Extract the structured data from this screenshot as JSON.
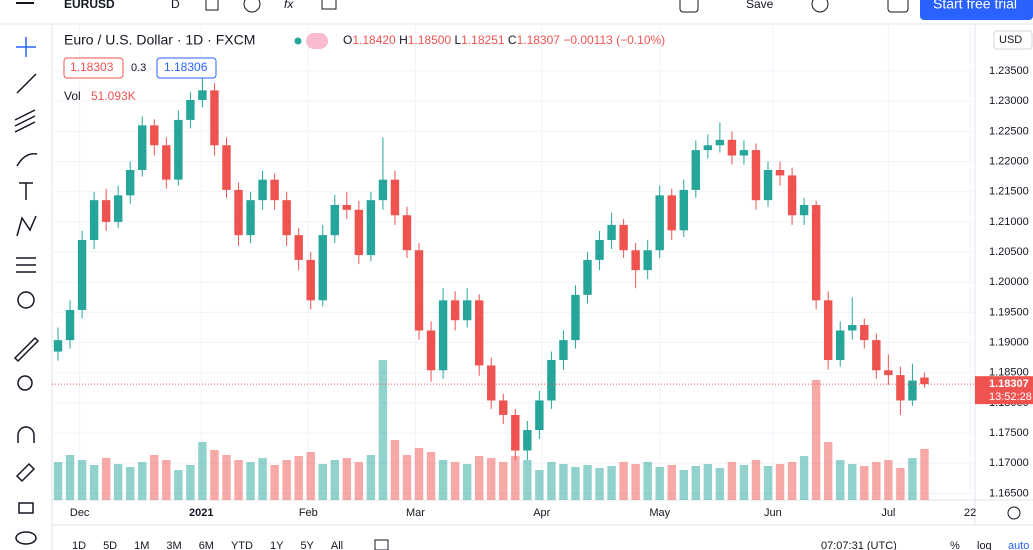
{
  "toolbar": {
    "symbol": "EURUSD",
    "interval": "D",
    "save": "Save",
    "trial": "Start free trial"
  },
  "legend": {
    "title": "Euro / U.S. Dollar · 1D · FXCM",
    "o_label": "O",
    "open": "1.18420",
    "h_label": "H",
    "high": "1.18500",
    "l_label": "L",
    "low": "1.18251",
    "c_label": "C",
    "close": "1.18307",
    "change": "−0.00113 (−0.10%)"
  },
  "trade": {
    "sell": "1.18303",
    "spread": "0.3",
    "buy": "1.18306"
  },
  "volume_legend": {
    "label": "Vol",
    "value": "51.093K"
  },
  "currency": "USD",
  "bottom": {
    "ranges": [
      "1D",
      "5D",
      "1M",
      "3M",
      "6M",
      "YTD",
      "1Y",
      "5Y",
      "All"
    ],
    "clock": "07:07:31 (UTC)",
    "percent": "%",
    "log": "log",
    "auto": "auto"
  },
  "chart_data": {
    "type": "candlestick",
    "up_color": "#26a69a",
    "down_color": "#ef5350",
    "candles": [
      [
        1.1885,
        1.1925,
        1.187,
        1.1904
      ],
      [
        1.1904,
        1.197,
        1.189,
        1.1954
      ],
      [
        1.1954,
        1.2085,
        1.194,
        1.207
      ],
      [
        1.207,
        1.215,
        1.2055,
        1.2136
      ],
      [
        1.2136,
        1.2155,
        1.2085,
        1.21
      ],
      [
        1.21,
        1.216,
        1.209,
        1.2144
      ],
      [
        1.2144,
        1.22,
        1.213,
        1.2186
      ],
      [
        1.2186,
        1.2275,
        1.2175,
        1.226
      ],
      [
        1.226,
        1.227,
        1.221,
        1.2227
      ],
      [
        1.2227,
        1.224,
        1.2155,
        1.217
      ],
      [
        1.217,
        1.2285,
        1.216,
        1.2269
      ],
      [
        1.2269,
        1.2315,
        1.2255,
        1.2302
      ],
      [
        1.2302,
        1.2349,
        1.229,
        1.2318
      ],
      [
        1.2318,
        1.233,
        1.221,
        1.2227
      ],
      [
        1.2227,
        1.224,
        1.214,
        1.2153
      ],
      [
        1.2153,
        1.2165,
        1.206,
        1.2078
      ],
      [
        1.2078,
        1.215,
        1.2065,
        1.2136
      ],
      [
        1.2136,
        1.2185,
        1.212,
        1.217
      ],
      [
        1.217,
        1.218,
        1.212,
        1.2136
      ],
      [
        1.2136,
        1.215,
        1.206,
        1.2078
      ],
      [
        1.2078,
        1.209,
        1.202,
        1.2037
      ],
      [
        1.2037,
        1.205,
        1.1955,
        1.197
      ],
      [
        1.197,
        1.2095,
        1.196,
        1.2078
      ],
      [
        1.2078,
        1.2145,
        1.2065,
        1.2128
      ],
      [
        1.2128,
        1.215,
        1.2105,
        1.212
      ],
      [
        1.212,
        1.2135,
        1.203,
        1.2045
      ],
      [
        1.2045,
        1.215,
        1.2035,
        1.2136
      ],
      [
        1.2136,
        1.224,
        1.212,
        1.217
      ],
      [
        1.217,
        1.2185,
        1.2095,
        1.2111
      ],
      [
        1.2111,
        1.2125,
        1.204,
        1.2053
      ],
      [
        1.2053,
        1.2065,
        1.1905,
        1.192
      ],
      [
        1.192,
        1.1935,
        1.1835,
        1.1854
      ],
      [
        1.1854,
        1.199,
        1.184,
        1.197
      ],
      [
        1.197,
        1.1985,
        1.192,
        1.1937
      ],
      [
        1.1937,
        1.199,
        1.1925,
        1.197
      ],
      [
        1.197,
        1.198,
        1.1845,
        1.1862
      ],
      [
        1.1862,
        1.1875,
        1.179,
        1.1804
      ],
      [
        1.1804,
        1.1815,
        1.1765,
        1.178
      ],
      [
        1.178,
        1.179,
        1.1705,
        1.1721
      ],
      [
        1.1721,
        1.177,
        1.1705,
        1.1755
      ],
      [
        1.1755,
        1.182,
        1.174,
        1.1804
      ],
      [
        1.1804,
        1.1885,
        1.179,
        1.1871
      ],
      [
        1.1871,
        1.192,
        1.1855,
        1.1904
      ],
      [
        1.1904,
        1.1995,
        1.189,
        1.1979
      ],
      [
        1.1979,
        1.205,
        1.1965,
        1.2037
      ],
      [
        1.2037,
        1.2085,
        1.202,
        1.207
      ],
      [
        1.207,
        1.2115,
        1.2055,
        1.2095
      ],
      [
        1.2095,
        1.2105,
        1.204,
        1.2053
      ],
      [
        1.2053,
        1.2065,
        1.199,
        1.202
      ],
      [
        1.202,
        1.207,
        1.2005,
        1.2053
      ],
      [
        1.2053,
        1.216,
        1.204,
        1.2144
      ],
      [
        1.2144,
        1.2155,
        1.207,
        1.2086
      ],
      [
        1.2086,
        1.217,
        1.2075,
        1.2153
      ],
      [
        1.2153,
        1.2235,
        1.214,
        1.2219
      ],
      [
        1.2219,
        1.2245,
        1.2205,
        1.2227
      ],
      [
        1.2227,
        1.2265,
        1.2215,
        1.2236
      ],
      [
        1.2236,
        1.225,
        1.2195,
        1.221
      ],
      [
        1.221,
        1.2235,
        1.2195,
        1.2219
      ],
      [
        1.2219,
        1.223,
        1.212,
        1.2136
      ],
      [
        1.2136,
        1.22,
        1.2125,
        1.2186
      ],
      [
        1.2186,
        1.22,
        1.216,
        1.2177
      ],
      [
        1.2177,
        1.219,
        1.2095,
        1.2111
      ],
      [
        1.2111,
        1.214,
        1.2095,
        1.2128
      ],
      [
        1.2128,
        1.2135,
        1.1955,
        1.197
      ],
      [
        1.197,
        1.1985,
        1.1855,
        1.1871
      ],
      [
        1.1871,
        1.1935,
        1.186,
        1.192
      ],
      [
        1.192,
        1.1975,
        1.1905,
        1.1929
      ],
      [
        1.1929,
        1.194,
        1.189,
        1.1904
      ],
      [
        1.1904,
        1.1915,
        1.184,
        1.1854
      ],
      [
        1.1854,
        1.188,
        1.183,
        1.1846
      ],
      [
        1.1846,
        1.186,
        1.178,
        1.1804
      ],
      [
        1.1804,
        1.1865,
        1.1795,
        1.1837
      ],
      [
        1.1842,
        1.185,
        1.1825,
        1.1831
      ]
    ],
    "volumes": [
      38,
      45,
      40,
      35,
      42,
      36,
      33,
      38,
      45,
      40,
      30,
      35,
      58,
      50,
      45,
      40,
      38,
      42,
      35,
      40,
      44,
      48,
      36,
      40,
      42,
      38,
      45,
      140,
      60,
      45,
      52,
      48,
      40,
      38,
      36,
      44,
      42,
      38,
      44,
      40,
      30,
      38,
      36,
      33,
      35,
      32,
      34,
      38,
      36,
      38,
      33,
      35,
      30,
      34,
      36,
      32,
      38,
      35,
      40,
      34,
      36,
      38,
      44,
      120,
      58,
      40,
      36,
      34,
      38,
      40,
      32,
      42,
      51.093
    ],
    "ylim": [
      1.1639,
      1.2428
    ],
    "yticks": [
      {
        "value": 1.165,
        "label": "1.16500"
      },
      {
        "value": 1.17,
        "label": "1.17000"
      },
      {
        "value": 1.175,
        "label": "1.17500"
      },
      {
        "value": 1.18,
        "label": "1.18000"
      },
      {
        "value": 1.185,
        "label": "1.18500"
      },
      {
        "value": 1.19,
        "label": "1.19000"
      },
      {
        "value": 1.195,
        "label": "1.19500"
      },
      {
        "value": 1.2,
        "label": "1.20000"
      },
      {
        "value": 1.205,
        "label": "1.20500"
      },
      {
        "value": 1.21,
        "label": "1.21000"
      },
      {
        "value": 1.215,
        "label": "1.21500"
      },
      {
        "value": 1.22,
        "label": "1.22000"
      },
      {
        "value": 1.225,
        "label": "1.22500"
      },
      {
        "value": 1.23,
        "label": "1.23000"
      },
      {
        "value": 1.235,
        "label": "1.23500"
      }
    ],
    "xlim": [
      -0.25,
      76.2
    ],
    "xticks": [
      {
        "value": 1.8,
        "label": "Dec"
      },
      {
        "value": 11.9,
        "label": "2021"
      },
      {
        "value": 20.8,
        "label": "Feb"
      },
      {
        "value": 29.7,
        "label": "Mar"
      },
      {
        "value": 40.2,
        "label": "Apr"
      },
      {
        "value": 50,
        "label": "May"
      },
      {
        "value": 59.4,
        "label": "Jun"
      },
      {
        "value": 69,
        "label": "Jul"
      },
      {
        "value": 75.8,
        "label": "22"
      }
    ],
    "last_price": {
      "label": "1.18307",
      "countdown": "13:52:28"
    }
  }
}
